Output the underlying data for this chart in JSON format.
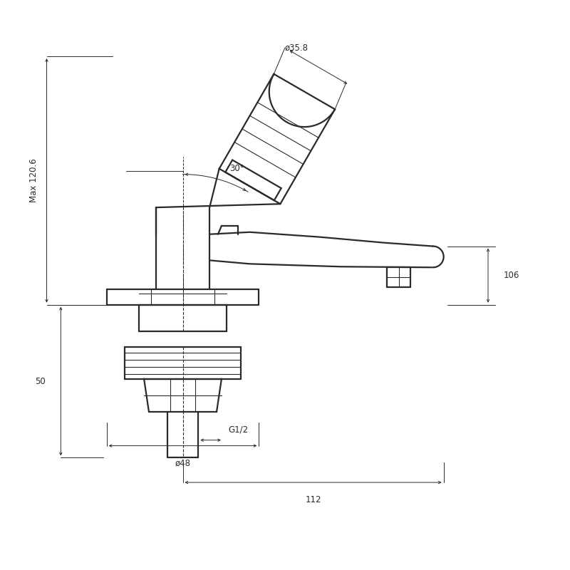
{
  "bg_color": "#ffffff",
  "line_color": "#2a2a2a",
  "dim_color": "#2a2a2a",
  "annotations": {
    "diameter_top": "ø35.8",
    "angle": "30°",
    "max_height": "Max 120.6",
    "height_106": "106",
    "height_50": "50",
    "g_half": "G1/2",
    "diameter_48": "ø48",
    "width_112": "112"
  },
  "lw_main": 1.6,
  "lw_thin": 0.8,
  "lw_dim": 0.7,
  "fs_dim": 8.5
}
